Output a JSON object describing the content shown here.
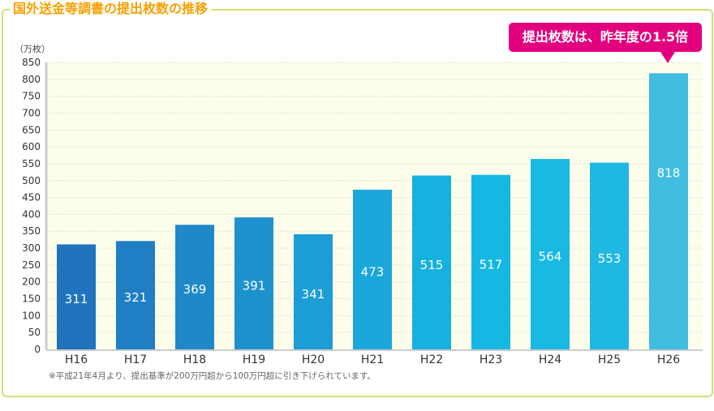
{
  "chart_data": {
    "type": "bar",
    "title": "国外送金等調書の提出枚数の推移",
    "ylabel": "（万枚）",
    "categories": [
      "H16",
      "H17",
      "H18",
      "H19",
      "H20",
      "H21",
      "H22",
      "H23",
      "H24",
      "H25",
      "H26"
    ],
    "values": [
      311,
      321,
      369,
      391,
      341,
      473,
      515,
      517,
      564,
      553,
      818
    ],
    "ylim": [
      0,
      850
    ],
    "yticks": [
      0,
      50,
      100,
      150,
      200,
      250,
      300,
      350,
      400,
      450,
      500,
      550,
      600,
      650,
      700,
      750,
      800,
      850
    ],
    "grid": true,
    "colors": [
      "#1f74bd",
      "#1f7ec4",
      "#1f88c9",
      "#1e92cf",
      "#1c9dd5",
      "#1aa7dc",
      "#17b1e0",
      "#15b8e3",
      "#18b9e3",
      "#1eb8e2",
      "#40bde0"
    ],
    "annotation": "提出枚数は、昨年度の1.5倍",
    "note": "※平成21年4月より、提出基準が200万円超から100万円超に引き下げられています。"
  },
  "colors": {
    "title": "#f5a000",
    "frame": "#cde27a",
    "callout": "#e3007f",
    "plot_bg": "#fdfdec"
  }
}
